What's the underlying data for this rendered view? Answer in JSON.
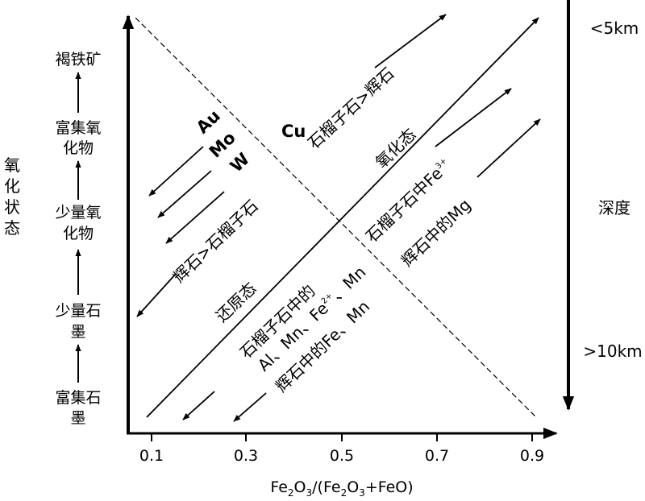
{
  "x_axis": {
    "label_parts": [
      "Fe",
      "2",
      "O",
      "3",
      "/(Fe",
      "2",
      "O",
      "3",
      "+FeO)"
    ],
    "ticks": [
      "0.1",
      "0.3",
      "0.5",
      "0.7",
      "0.9"
    ]
  },
  "y_axis": {
    "title": "氧化状态",
    "stages": [
      {
        "lines": [
          "富集石",
          "墨"
        ]
      },
      {
        "lines": [
          "少量石",
          "墨"
        ]
      },
      {
        "lines": [
          "少量氧",
          "化物"
        ]
      },
      {
        "lines": [
          "富集氧",
          "化物"
        ]
      },
      {
        "lines": [
          "褐铁矿"
        ]
      }
    ]
  },
  "depth_axis": {
    "title": "深度",
    "top_label": "<5km",
    "bottom_label": ">10km"
  },
  "elements": {
    "au": "Au",
    "mo": "Mo",
    "w": "W",
    "cu": "Cu"
  },
  "annotations": {
    "garnet_gt_pyroxene": "石榴子石>辉石",
    "pyroxene_gt_garnet": "辉石>石榴子石",
    "oxidized": "氧化态",
    "reduced": "还原态",
    "fe3_in_garnet": "石榴子石中Fe",
    "fe3_sup": "3+",
    "mg_in_pyroxene": "辉石中的Mg",
    "garnet_line1": "石榴子石中的",
    "garnet_line2_text": "Al、Mn、Fe",
    "garnet_line2_sup": "2+",
    "pyroxene_fe_mn": "辉石中的Fe、Mn"
  }
}
